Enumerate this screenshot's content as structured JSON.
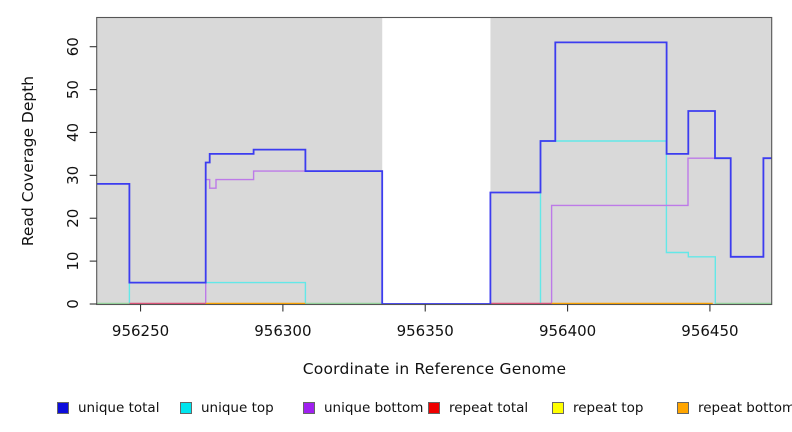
{
  "chart_data": {
    "type": "line",
    "subtype": "step",
    "title": "",
    "xlabel": "Coordinate in Reference Genome",
    "ylabel": "Read Coverage Depth",
    "xlim": [
      956234.6,
      956471.7
    ],
    "ylim": [
      0,
      66.9
    ],
    "x_ticks": [
      956250,
      956300,
      956350,
      956400,
      956450
    ],
    "y_ticks": [
      0,
      10,
      20,
      30,
      40,
      50,
      60
    ],
    "grid": false,
    "legend_position": "bottom",
    "plot_bg": "#d9d9d9",
    "box_border": "#555555",
    "gap_region": {
      "from": 956334.9,
      "to": 956372.9,
      "color": "#ffffff"
    },
    "series": [
      {
        "name": "unique total",
        "color": "#3c3cf0",
        "width": 1.8,
        "points": [
          [
            956234.6,
            28
          ],
          [
            956246.1,
            28
          ],
          [
            956246.1,
            5
          ],
          [
            956272.9,
            5
          ],
          [
            956272.9,
            33
          ],
          [
            956274.3,
            33
          ],
          [
            956274.3,
            35
          ],
          [
            956289.7,
            35
          ],
          [
            956289.7,
            36
          ],
          [
            956307.9,
            36
          ],
          [
            956307.9,
            31
          ],
          [
            956334.9,
            31
          ],
          [
            956334.9,
            0
          ],
          [
            956372.9,
            0
          ],
          [
            956372.9,
            26
          ],
          [
            956390.5,
            26
          ],
          [
            956390.5,
            38
          ],
          [
            956395.7,
            38
          ],
          [
            956395.7,
            61
          ],
          [
            956434.8,
            61
          ],
          [
            956434.8,
            35
          ],
          [
            956442.4,
            35
          ],
          [
            956442.4,
            45
          ],
          [
            956451.8,
            45
          ],
          [
            956451.8,
            34
          ],
          [
            956457.3,
            34
          ],
          [
            956457.3,
            11
          ],
          [
            956468.8,
            11
          ],
          [
            956468.8,
            34
          ],
          [
            956471.7,
            34
          ]
        ]
      },
      {
        "name": "unique top",
        "color": "#63e8e8",
        "width": 1.4,
        "points": [
          [
            956234.6,
            0
          ],
          [
            956246.1,
            0
          ],
          [
            956246.1,
            5
          ],
          [
            956307.9,
            5
          ],
          [
            956307.9,
            0
          ],
          [
            956390.5,
            0
          ],
          [
            956390.5,
            38
          ],
          [
            956434.7,
            38
          ],
          [
            956434.7,
            12
          ],
          [
            956442.4,
            12
          ],
          [
            956442.4,
            11
          ],
          [
            956451.9,
            11
          ],
          [
            956451.9,
            0
          ],
          [
            956471.7,
            0
          ]
        ]
      },
      {
        "name": "unique bottom",
        "color": "#bd7ae8",
        "width": 1.4,
        "points": [
          [
            956234.6,
            0
          ],
          [
            956272.9,
            0
          ],
          [
            956272.9,
            29
          ],
          [
            956274.3,
            29
          ],
          [
            956274.3,
            27
          ],
          [
            956276.5,
            27
          ],
          [
            956276.5,
            29
          ],
          [
            956289.7,
            29
          ],
          [
            956289.7,
            31
          ],
          [
            956334.9,
            31
          ],
          [
            956334.9,
            0
          ],
          [
            956394.4,
            0
          ],
          [
            956394.4,
            23
          ],
          [
            956442.3,
            23
          ],
          [
            956442.3,
            34
          ],
          [
            956457.3,
            34
          ],
          [
            956457.3,
            11
          ],
          [
            956468.8,
            11
          ],
          [
            956468.8,
            34
          ],
          [
            956471.7,
            34
          ]
        ]
      }
    ],
    "zero_line_segments": [
      {
        "color": "#98d89e",
        "from": 956234.6,
        "to": 956246.1
      },
      {
        "color": "#e0557a",
        "from": 956246.1,
        "to": 956272.9
      },
      {
        "color": "#ffa500",
        "from": 956272.9,
        "to": 956307.9
      },
      {
        "color": "#98d89e",
        "from": 956307.9,
        "to": 956334.9
      },
      {
        "color": "#e0557a",
        "from": 956372.9,
        "to": 956394.4
      },
      {
        "color": "#ffa500",
        "from": 956394.4,
        "to": 956451.0
      },
      {
        "color": "#98d89e",
        "from": 956451.9,
        "to": 956471.7
      }
    ]
  },
  "legend": {
    "items": [
      {
        "label": "unique total",
        "color": "#0c0cdc"
      },
      {
        "label": "unique top",
        "color": "#00e5ee"
      },
      {
        "label": "unique bottom",
        "color": "#a020f0"
      },
      {
        "label": "repeat total",
        "color": "#ee0000"
      },
      {
        "label": "repeat top",
        "color": "#ffff00"
      },
      {
        "label": "repeat bottom",
        "color": "#ffa500"
      }
    ]
  }
}
